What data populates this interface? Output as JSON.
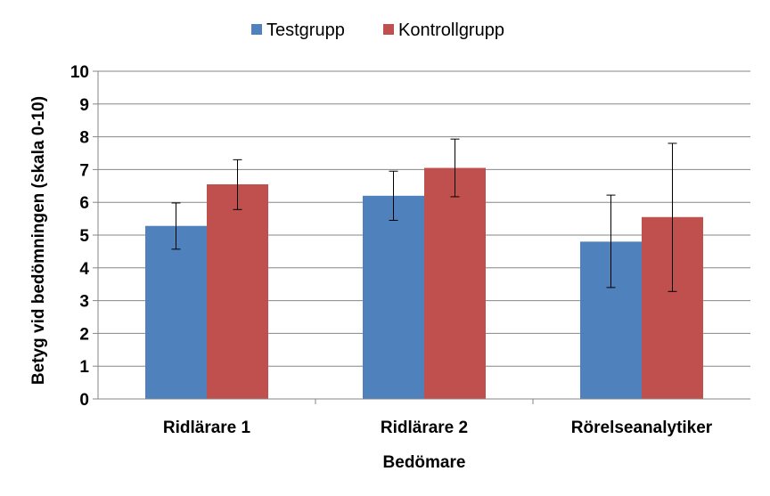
{
  "chart_data": {
    "type": "bar",
    "title": "",
    "xlabel": "Bedömare",
    "ylabel": "Betyg vid bedömningen (skala 0-10)",
    "ylim": [
      0,
      10
    ],
    "yticks": [
      0,
      1,
      2,
      3,
      4,
      5,
      6,
      7,
      8,
      9,
      10
    ],
    "grid": true,
    "legend": "top-center",
    "categories": [
      "Ridlärare 1",
      "Ridlärare 2",
      "Rörelseanalytiker"
    ],
    "series": [
      {
        "name": "Testgrupp",
        "color": "#4F81BD",
        "values": [
          5.28,
          6.2,
          4.8
        ],
        "error_low": [
          4.57,
          5.45,
          3.4
        ],
        "error_high": [
          5.98,
          6.95,
          6.22
        ]
      },
      {
        "name": "Kontrollgrupp",
        "color": "#C0504D",
        "values": [
          6.55,
          7.05,
          5.55
        ],
        "error_low": [
          5.78,
          6.17,
          3.28
        ],
        "error_high": [
          7.3,
          7.93,
          7.8
        ]
      }
    ]
  }
}
